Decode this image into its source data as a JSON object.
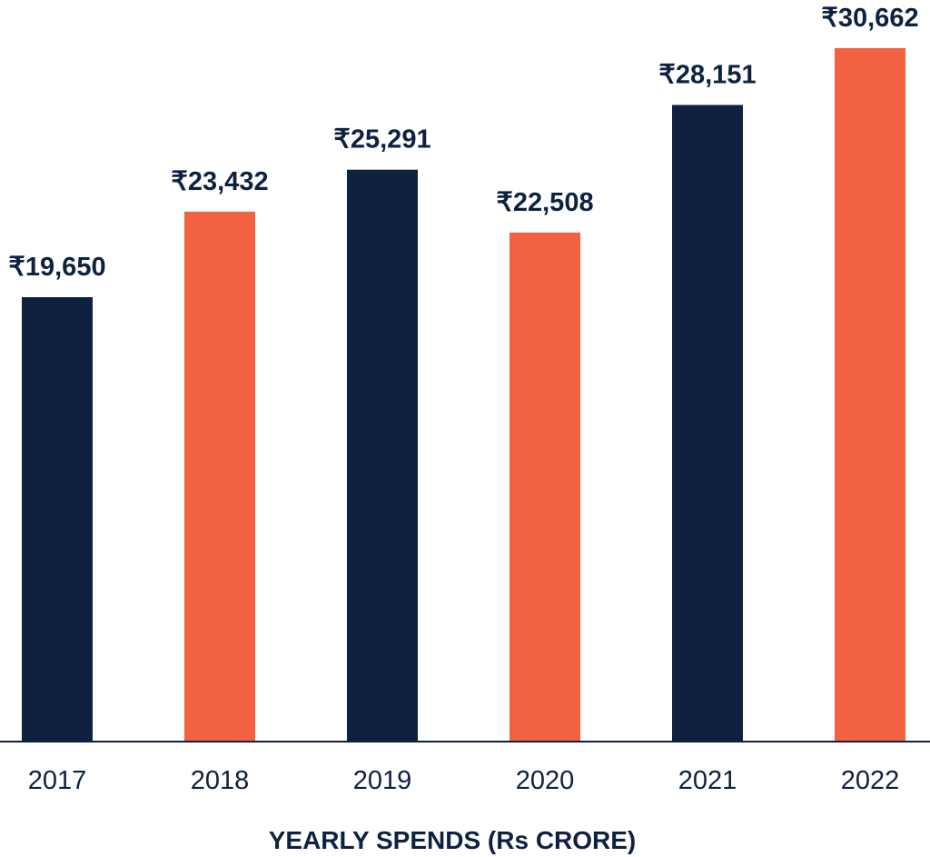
{
  "chart_data": {
    "type": "bar",
    "categories": [
      "2017",
      "2018",
      "2019",
      "2020",
      "2021",
      "2022"
    ],
    "values": [
      19650,
      23432,
      25291,
      22508,
      28151,
      30662
    ],
    "value_labels": [
      "₹19,650",
      "₹23,432",
      "₹25,291",
      "₹22,508",
      "₹28,151",
      "₹30,662"
    ],
    "bar_colors": [
      "#0e2141",
      "#f26241",
      "#0e2141",
      "#f26241",
      "#0e2141",
      "#f26241"
    ],
    "title": "",
    "xlabel": "YEARLY SPENDS (Rs CRORE)",
    "ylabel": "",
    "ylim": [
      0,
      30662
    ],
    "grid": false,
    "legend": "none",
    "axis_color": "#0e2141"
  }
}
